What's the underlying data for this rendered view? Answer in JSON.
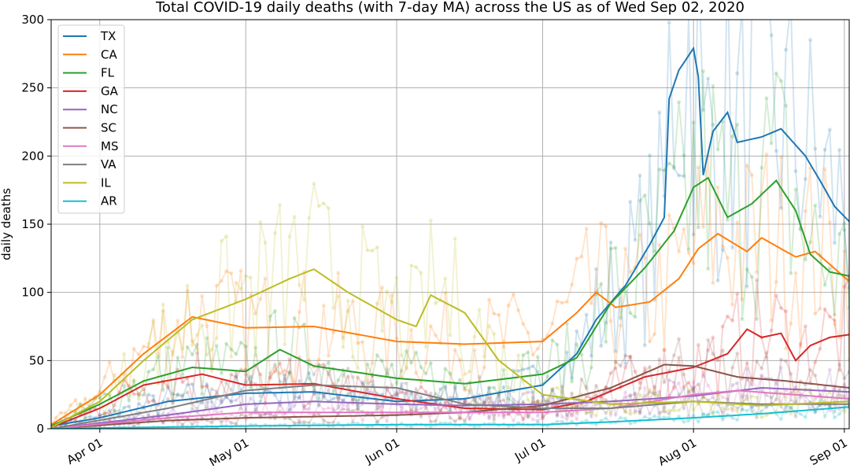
{
  "chart_data": {
    "type": "line",
    "title": "Total COVID-19 daily deaths (with 7-day MA) across the US as of Wed Sep 02, 2020",
    "xlabel": "",
    "ylabel": "daily deaths",
    "x_start": "2020-03-22",
    "x_end": "2020-09-02",
    "xlim": [
      "2020-03-22",
      "2020-09-02"
    ],
    "ylim": [
      0,
      300
    ],
    "yticks": [
      0,
      50,
      100,
      150,
      200,
      250,
      300
    ],
    "xticks": [
      {
        "date": "2020-04-01",
        "label": "Apr 01"
      },
      {
        "date": "2020-05-01",
        "label": "May 01"
      },
      {
        "date": "2020-06-01",
        "label": "Jun 01"
      },
      {
        "date": "2020-07-01",
        "label": "Jul 01"
      },
      {
        "date": "2020-08-01",
        "label": "Aug 01"
      },
      {
        "date": "2020-09-01",
        "label": "Sep 01"
      }
    ],
    "grid": true,
    "legend_position": "top-left",
    "series": [
      {
        "name": "TX",
        "color": "#1f77b4",
        "ma": [
          {
            "x": "2020-03-22",
            "y": 2
          },
          {
            "x": "2020-04-01",
            "y": 8
          },
          {
            "x": "2020-04-15",
            "y": 20
          },
          {
            "x": "2020-05-01",
            "y": 26
          },
          {
            "x": "2020-05-15",
            "y": 27
          },
          {
            "x": "2020-06-01",
            "y": 20
          },
          {
            "x": "2020-06-15",
            "y": 22
          },
          {
            "x": "2020-07-01",
            "y": 32
          },
          {
            "x": "2020-07-08",
            "y": 55
          },
          {
            "x": "2020-07-12",
            "y": 80
          },
          {
            "x": "2020-07-18",
            "y": 105
          },
          {
            "x": "2020-07-23",
            "y": 135
          },
          {
            "x": "2020-07-26",
            "y": 155
          },
          {
            "x": "2020-07-27",
            "y": 242
          },
          {
            "x": "2020-07-29",
            "y": 263
          },
          {
            "x": "2020-08-01",
            "y": 279
          },
          {
            "x": "2020-08_02",
            "y": 258
          },
          {
            "x": "2020-08-03",
            "y": 186
          },
          {
            "x": "2020-08-05",
            "y": 218
          },
          {
            "x": "2020-08-08",
            "y": 232
          },
          {
            "x": "2020-08-10",
            "y": 210
          },
          {
            "x": "2020-08-15",
            "y": 214
          },
          {
            "x": "2020-08-19",
            "y": 220
          },
          {
            "x": "2020-08-24",
            "y": 200
          },
          {
            "x": "2020-08-27",
            "y": 182
          },
          {
            "x": "2020-08-30",
            "y": 163
          },
          {
            "x": "2020-09-02",
            "y": 152
          }
        ]
      },
      {
        "name": "CA",
        "color": "#ff7f0e",
        "ma": [
          {
            "x": "2020-03-22",
            "y": 3
          },
          {
            "x": "2020-04-01",
            "y": 25
          },
          {
            "x": "2020-04-10",
            "y": 55
          },
          {
            "x": "2020-04-20",
            "y": 82
          },
          {
            "x": "2020-05-01",
            "y": 74
          },
          {
            "x": "2020-05-15",
            "y": 75
          },
          {
            "x": "2020-06-01",
            "y": 64
          },
          {
            "x": "2020-06-15",
            "y": 62
          },
          {
            "x": "2020-07-01",
            "y": 64
          },
          {
            "x": "2020-07-08",
            "y": 85
          },
          {
            "x": "2020-07-12",
            "y": 100
          },
          {
            "x": "2020-07-16",
            "y": 89
          },
          {
            "x": "2020-07-23",
            "y": 93
          },
          {
            "x": "2020-07-29",
            "y": 110
          },
          {
            "x": "2020-08-02",
            "y": 132
          },
          {
            "x": "2020-08-06",
            "y": 143
          },
          {
            "x": "2020-08-12",
            "y": 130
          },
          {
            "x": "2020-08-15",
            "y": 140
          },
          {
            "x": "2020-08-22",
            "y": 126
          },
          {
            "x": "2020-08-26",
            "y": 130
          },
          {
            "x": "2020-09-02",
            "y": 108
          }
        ]
      },
      {
        "name": "FL",
        "color": "#2ca02c",
        "ma": [
          {
            "x": "2020-03-22",
            "y": 2
          },
          {
            "x": "2020-04-01",
            "y": 18
          },
          {
            "x": "2020-04-10",
            "y": 35
          },
          {
            "x": "2020-04-20",
            "y": 45
          },
          {
            "x": "2020-05-01",
            "y": 42
          },
          {
            "x": "2020-05-08",
            "y": 58
          },
          {
            "x": "2020-05-15",
            "y": 46
          },
          {
            "x": "2020-06-01",
            "y": 37
          },
          {
            "x": "2020-06-15",
            "y": 33
          },
          {
            "x": "2020-07-01",
            "y": 40
          },
          {
            "x": "2020-07-08",
            "y": 52
          },
          {
            "x": "2020-07-15",
            "y": 92
          },
          {
            "x": "2020-07-22",
            "y": 118
          },
          {
            "x": "2020-07-28",
            "y": 145
          },
          {
            "x": "2020-08-01",
            "y": 177
          },
          {
            "x": "2020-08-04",
            "y": 184
          },
          {
            "x": "2020-08-08",
            "y": 155
          },
          {
            "x": "2020-08-13",
            "y": 165
          },
          {
            "x": "2020-08-18",
            "y": 182
          },
          {
            "x": "2020-08-22",
            "y": 160
          },
          {
            "x": "2020-08-25",
            "y": 128
          },
          {
            "x": "2020-08-29",
            "y": 115
          },
          {
            "x": "2020-09-02",
            "y": 112
          }
        ]
      },
      {
        "name": "GA",
        "color": "#d62728",
        "ma": [
          {
            "x": "2020-03-22",
            "y": 1
          },
          {
            "x": "2020-04-01",
            "y": 15
          },
          {
            "x": "2020-04-10",
            "y": 32
          },
          {
            "x": "2020-04-22",
            "y": 40
          },
          {
            "x": "2020-05-01",
            "y": 32
          },
          {
            "x": "2020-05-15",
            "y": 33
          },
          {
            "x": "2020-06-01",
            "y": 22
          },
          {
            "x": "2020-06-15",
            "y": 15
          },
          {
            "x": "2020-07-01",
            "y": 14
          },
          {
            "x": "2020-07-10",
            "y": 20
          },
          {
            "x": "2020-07-22",
            "y": 38
          },
          {
            "x": "2020-08-01",
            "y": 45
          },
          {
            "x": "2020-08-08",
            "y": 55
          },
          {
            "x": "2020-08-12",
            "y": 73
          },
          {
            "x": "2020-08-15",
            "y": 67
          },
          {
            "x": "2020-08-19",
            "y": 70
          },
          {
            "x": "2020-08-22",
            "y": 50
          },
          {
            "x": "2020-08-25",
            "y": 61
          },
          {
            "x": "2020-08-29",
            "y": 67
          },
          {
            "x": "2020-09-02",
            "y": 69
          }
        ]
      },
      {
        "name": "NC",
        "color": "#9467bd",
        "ma": [
          {
            "x": "2020-03-22",
            "y": 0
          },
          {
            "x": "2020-04-15",
            "y": 10
          },
          {
            "x": "2020-05-01",
            "y": 18
          },
          {
            "x": "2020-05-15",
            "y": 20
          },
          {
            "x": "2020-06-01",
            "y": 18
          },
          {
            "x": "2020-06-15",
            "y": 17
          },
          {
            "x": "2020-07-01",
            "y": 18
          },
          {
            "x": "2020-07-15",
            "y": 20
          },
          {
            "x": "2020-08-01",
            "y": 24
          },
          {
            "x": "2020-08-15",
            "y": 30
          },
          {
            "x": "2020-09-02",
            "y": 27
          }
        ]
      },
      {
        "name": "SC",
        "color": "#8c564b",
        "ma": [
          {
            "x": "2020-03-22",
            "y": 0
          },
          {
            "x": "2020-04-15",
            "y": 6
          },
          {
            "x": "2020-05-01",
            "y": 8
          },
          {
            "x": "2020-06-01",
            "y": 10
          },
          {
            "x": "2020-06-15",
            "y": 12
          },
          {
            "x": "2020-07-01",
            "y": 17
          },
          {
            "x": "2020-07-15",
            "y": 30
          },
          {
            "x": "2020-07-26",
            "y": 47
          },
          {
            "x": "2020-08-01",
            "y": 46
          },
          {
            "x": "2020-08-10",
            "y": 38
          },
          {
            "x": "2020-08-20",
            "y": 35
          },
          {
            "x": "2020-09-02",
            "y": 30
          }
        ]
      },
      {
        "name": "MS",
        "color": "#e377c2",
        "ma": [
          {
            "x": "2020-03-22",
            "y": 0
          },
          {
            "x": "2020-04-15",
            "y": 8
          },
          {
            "x": "2020-05-01",
            "y": 12
          },
          {
            "x": "2020-06-01",
            "y": 12
          },
          {
            "x": "2020-07-01",
            "y": 12
          },
          {
            "x": "2020-07-15",
            "y": 15
          },
          {
            "x": "2020-08-01",
            "y": 25
          },
          {
            "x": "2020-08-10",
            "y": 28
          },
          {
            "x": "2020-09-02",
            "y": 22
          }
        ]
      },
      {
        "name": "VA",
        "color": "#7f7f7f",
        "ma": [
          {
            "x": "2020-03-22",
            "y": 0
          },
          {
            "x": "2020-04-15",
            "y": 15
          },
          {
            "x": "2020-05-01",
            "y": 28
          },
          {
            "x": "2020-05-15",
            "y": 32
          },
          {
            "x": "2020-06-01",
            "y": 30
          },
          {
            "x": "2020-06-15",
            "y": 18
          },
          {
            "x": "2020-07-01",
            "y": 15
          },
          {
            "x": "2020-07-15",
            "y": 15
          },
          {
            "x": "2020-08-01",
            "y": 20
          },
          {
            "x": "2020-08-15",
            "y": 18
          },
          {
            "x": "2020-09-02",
            "y": 18
          }
        ]
      },
      {
        "name": "IL",
        "color": "#bcbd22",
        "ma": [
          {
            "x": "2020-03-22",
            "y": 1
          },
          {
            "x": "2020-04-01",
            "y": 20
          },
          {
            "x": "2020-04-10",
            "y": 50
          },
          {
            "x": "2020-04-20",
            "y": 80
          },
          {
            "x": "2020-05-01",
            "y": 95
          },
          {
            "x": "2020-05-10",
            "y": 110
          },
          {
            "x": "2020-05-15",
            "y": 117
          },
          {
            "x": "2020-05-22",
            "y": 100
          },
          {
            "x": "2020-06-01",
            "y": 80
          },
          {
            "x": "2020-06-05",
            "y": 75
          },
          {
            "x": "2020-06-08",
            "y": 98
          },
          {
            "x": "2020-06-15",
            "y": 85
          },
          {
            "x": "2020-06-22",
            "y": 50
          },
          {
            "x": "2020-07-01",
            "y": 25
          },
          {
            "x": "2020-07-15",
            "y": 18
          },
          {
            "x": "2020-08-01",
            "y": 20
          },
          {
            "x": "2020-08-15",
            "y": 17
          },
          {
            "x": "2020-09-02",
            "y": 20
          }
        ]
      },
      {
        "name": "AR",
        "color": "#17becf",
        "ma": [
          {
            "x": "2020-03-22",
            "y": 0
          },
          {
            "x": "2020-05-01",
            "y": 2
          },
          {
            "x": "2020-06-01",
            "y": 3
          },
          {
            "x": "2020-07-01",
            "y": 3
          },
          {
            "x": "2020-07-15",
            "y": 5
          },
          {
            "x": "2020-08-01",
            "y": 8
          },
          {
            "x": "2020-08-15",
            "y": 11
          },
          {
            "x": "2020-09-02",
            "y": 16
          }
        ]
      }
    ]
  }
}
